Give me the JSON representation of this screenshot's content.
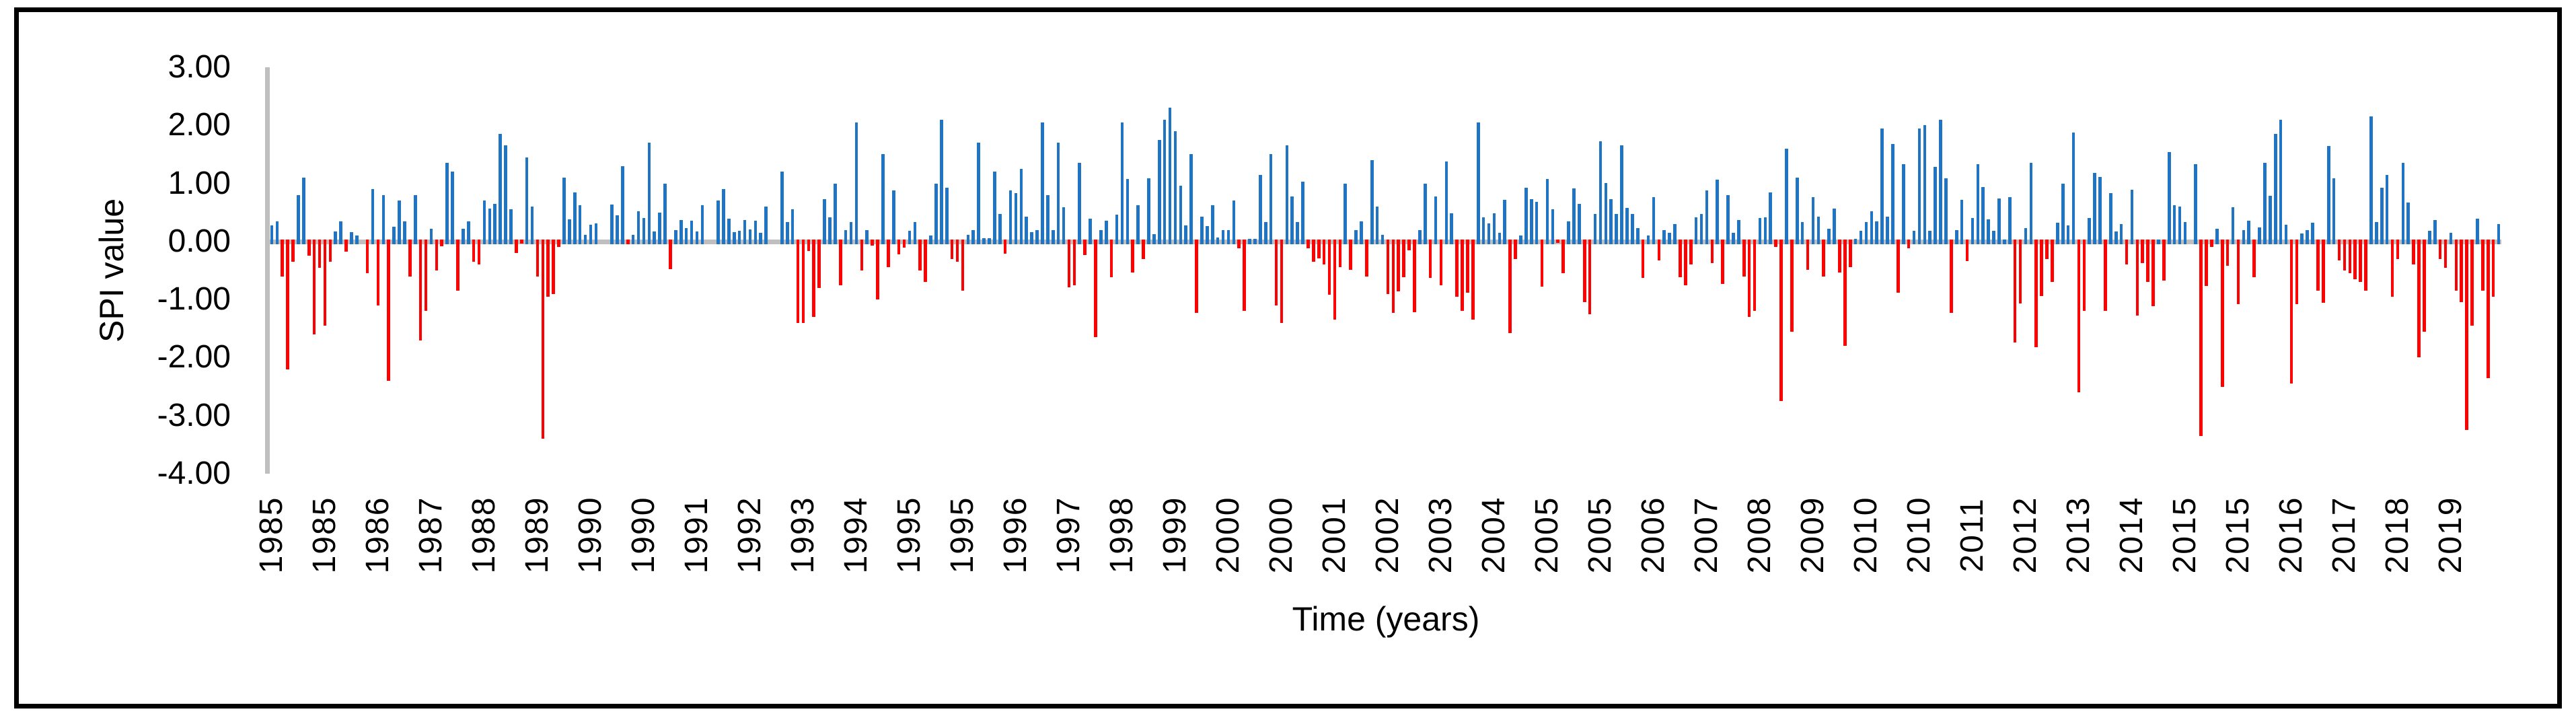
{
  "chart_data": {
    "type": "bar",
    "title": "",
    "xlabel": "Time (years)",
    "ylabel": "SPI value",
    "ylim": [
      -4,
      3
    ],
    "grid": false,
    "legend": null,
    "colors": {
      "positive_bar": "#1F74C4",
      "negative_bar": "#FF0000",
      "axis_line": "#BFBFBF",
      "frame_border": "#000000",
      "background": "#FFFFFF"
    },
    "ytick_labels": [
      "3.00",
      "2.00",
      "1.00",
      "0.00",
      "-1.00",
      "-2.00",
      "-3.00",
      "-4.00"
    ],
    "xtick_labels": [
      "1985",
      "1985",
      "1986",
      "1987",
      "1988",
      "1989",
      "1990",
      "1990",
      "1991",
      "1992",
      "1993",
      "1994",
      "1995",
      "1995",
      "1996",
      "1997",
      "1998",
      "1999",
      "2000",
      "2000",
      "2001",
      "2002",
      "2003",
      "2004",
      "2005",
      "2005",
      "2006",
      "2007",
      "2008",
      "2009",
      "2010",
      "2010",
      "2011",
      "2012",
      "2013",
      "2014",
      "2015",
      "2015",
      "2016",
      "2017",
      "2018",
      "2019"
    ],
    "x_start_month": "1985-01",
    "x_end_month": "2019-12",
    "xtick_interval_months": 10,
    "n_points": 420,
    "values": [
      0.28,
      0.35,
      -0.6,
      -2.2,
      -0.35,
      0.8,
      1.1,
      -0.25,
      -1.6,
      -0.45,
      -1.45,
      -0.35,
      0.17,
      0.35,
      -0.17,
      0.16,
      0.1,
      0.0,
      -0.55,
      0.9,
      -1.1,
      0.8,
      -2.4,
      0.25,
      0.7,
      0.35,
      -0.6,
      0.8,
      -1.7,
      -1.2,
      0.22,
      -0.5,
      -0.08,
      1.35,
      1.2,
      -0.85,
      0.22,
      0.35,
      -0.35,
      -0.4,
      0.7,
      0.57,
      0.65,
      1.85,
      1.65,
      0.55,
      -0.2,
      -0.04,
      1.45,
      0.6,
      -0.6,
      -3.4,
      -0.95,
      -0.9,
      -0.1,
      1.1,
      0.38,
      0.85,
      0.62,
      0.11,
      0.29,
      0.31,
      0.0,
      0.0,
      0.63,
      0.45,
      1.3,
      -0.05,
      0.11,
      0.52,
      0.4,
      1.7,
      0.17,
      0.5,
      1.0,
      -0.48,
      0.19,
      0.37,
      0.23,
      0.36,
      0.17,
      0.62,
      0.0,
      0.0,
      0.7,
      0.9,
      0.39,
      0.16,
      0.18,
      0.37,
      0.21,
      0.36,
      0.15,
      0.6,
      0.0,
      0.0,
      1.2,
      0.33,
      0.56,
      -1.4,
      -1.4,
      -0.16,
      -1.3,
      -0.8,
      0.73,
      0.41,
      1.0,
      -0.76,
      0.19,
      0.34,
      2.05,
      -0.5,
      0.19,
      -0.07,
      -1.0,
      1.5,
      -0.44,
      0.88,
      -0.22,
      -0.11,
      0.18,
      0.34,
      -0.5,
      -0.7,
      0.1,
      1.0,
      2.1,
      0.92,
      -0.3,
      -0.35,
      -0.85,
      0.12,
      0.2,
      1.7,
      0.06,
      0.06,
      1.2,
      0.47,
      -0.21,
      0.88,
      0.83,
      1.25,
      0.43,
      0.16,
      0.19,
      2.05,
      0.8,
      0.19,
      1.7,
      0.59,
      -0.79,
      -0.75,
      1.35,
      -0.23,
      0.39,
      -1.65,
      0.2,
      0.36,
      -0.62,
      0.46,
      2.05,
      1.08,
      -0.53,
      0.62,
      -0.3,
      1.09,
      0.13,
      1.75,
      2.1,
      2.3,
      1.9,
      0.96,
      0.28,
      1.5,
      -1.23,
      0.43,
      0.26,
      0.62,
      0.07,
      0.19,
      0.19,
      0.7,
      -0.12,
      -1.2,
      0.04,
      0.05,
      1.15,
      0.33,
      1.5,
      -1.1,
      -1.4,
      1.65,
      0.78,
      0.34,
      1.03,
      -0.12,
      -0.35,
      -0.29,
      -0.4,
      -0.92,
      -1.35,
      -0.44,
      1.0,
      -0.49,
      0.19,
      0.35,
      -0.6,
      1.4,
      0.6,
      0.12,
      -0.91,
      -1.23,
      -0.86,
      -0.62,
      -0.15,
      -1.22,
      0.19,
      1.0,
      -0.63,
      0.78,
      -0.75,
      1.38,
      0.48,
      -0.95,
      -1.2,
      -0.88,
      -1.35,
      2.05,
      0.42,
      0.31,
      0.48,
      0.15,
      0.72,
      -1.58,
      -0.3,
      0.1,
      0.92,
      0.73,
      0.68,
      -0.78,
      1.08,
      0.55,
      -0.02,
      -0.55,
      0.35,
      0.91,
      0.65,
      -1.05,
      -1.25,
      0.47,
      1.73,
      1.01,
      0.73,
      0.47,
      1.65,
      0.58,
      0.47,
      0.23,
      -0.63,
      0.1,
      0.76,
      -0.33,
      0.2,
      0.15,
      0.3,
      -0.62,
      -0.75,
      -0.4,
      0.42,
      0.47,
      0.88,
      -0.37,
      1.06,
      -0.73,
      0.8,
      0.15,
      0.37,
      -0.6,
      -1.3,
      -1.2,
      0.4,
      0.42,
      0.85,
      -0.1,
      -2.75,
      1.6,
      -1.55,
      1.1,
      0.33,
      -0.49,
      0.76,
      0.43,
      -0.6,
      0.22,
      0.57,
      -0.54,
      -1.8,
      -0.44,
      0.05,
      0.18,
      0.33,
      0.52,
      0.35,
      1.95,
      0.43,
      1.68,
      -0.88,
      1.33,
      -0.12,
      0.18,
      1.95,
      2.0,
      0.18,
      1.29,
      2.1,
      1.09,
      -1.23,
      0.2,
      0.72,
      -0.34,
      0.4,
      1.33,
      0.94,
      0.38,
      0.18,
      0.74,
      0.03,
      0.76,
      -1.74,
      -1.07,
      0.23,
      1.36,
      -1.82,
      -0.94,
      -0.3,
      -0.7,
      0.32,
      0.99,
      0.28,
      1.88,
      -2.6,
      -1.19,
      0.4,
      1.18,
      1.11,
      -1.19,
      0.83,
      0.17,
      0.3,
      -0.4,
      0.89,
      -1.28,
      -0.37,
      -0.7,
      -1.11,
      0.03,
      -0.67,
      1.54,
      0.62,
      0.6,
      0.34,
      0.0,
      1.33,
      -3.35,
      -0.77,
      -0.1,
      0.22,
      -2.5,
      -0.42,
      0.59,
      -1.08,
      0.19,
      0.36,
      -0.62,
      0.24,
      1.36,
      0.79,
      1.85,
      2.1,
      0.29,
      -2.45,
      -1.08,
      0.14,
      0.2,
      0.32,
      -0.85,
      -1.06,
      1.64,
      1.09,
      -0.33,
      -0.5,
      -0.55,
      -0.65,
      -0.7,
      -0.85,
      2.15,
      0.34,
      0.92,
      1.15,
      -0.95,
      -0.3,
      1.36,
      0.67,
      -0.4,
      -2.0,
      -1.55,
      0.18,
      0.37,
      -0.3,
      -0.45,
      0.15,
      -0.85,
      -1.05,
      -3.25,
      -1.45,
      0.39,
      -0.85,
      -2.35,
      -0.95,
      0.3
    ]
  }
}
